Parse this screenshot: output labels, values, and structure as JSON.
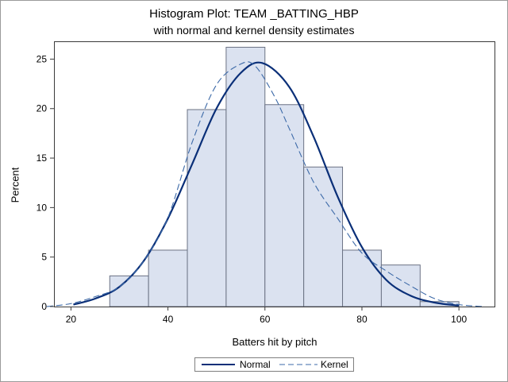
{
  "chart_data": {
    "type": "histogram",
    "title": "Histogram Plot: TEAM _BATTING_HBP",
    "subtitle": "with normal and kernel density estimates",
    "xlabel": "Batters hit by pitch",
    "ylabel": "Percent",
    "xlim": [
      16.5,
      107.5
    ],
    "ylim": [
      0,
      26.8
    ],
    "xticks": [
      20,
      40,
      60,
      80,
      100
    ],
    "yticks": [
      0,
      5,
      10,
      15,
      20,
      25
    ],
    "grid": false,
    "legend_position": "bottom-center",
    "bins": [
      {
        "start": 28,
        "end": 36,
        "value": 3.1
      },
      {
        "start": 36,
        "end": 44,
        "value": 5.7
      },
      {
        "start": 44,
        "end": 52,
        "value": 19.9
      },
      {
        "start": 52,
        "end": 60,
        "value": 26.2
      },
      {
        "start": 60,
        "end": 68,
        "value": 20.4
      },
      {
        "start": 68,
        "end": 76,
        "value": 14.1
      },
      {
        "start": 76,
        "end": 84,
        "value": 5.7
      },
      {
        "start": 84,
        "end": 92,
        "value": 4.2
      },
      {
        "start": 92,
        "end": 100,
        "value": 0.5
      }
    ],
    "series": [
      {
        "name": "Normal",
        "style": "solid",
        "color": "#0a2f78",
        "x": [
          20.5,
          25,
          30,
          35,
          40,
          45,
          50,
          55,
          59.5,
          65,
          70,
          75,
          80,
          85,
          90,
          95,
          100
        ],
        "y": [
          0.2,
          0.8,
          2.0,
          4.6,
          8.9,
          14.4,
          20.0,
          23.6,
          24.6,
          22.2,
          17.2,
          11.1,
          6.0,
          2.7,
          1.1,
          0.4,
          0.1
        ]
      },
      {
        "name": "Kernel",
        "style": "dashed",
        "color": "#3d6aa8",
        "x": [
          15,
          20,
          25,
          30,
          35,
          40,
          45,
          50,
          55,
          58,
          62,
          65,
          70,
          75,
          80,
          85,
          90,
          95,
          100,
          105
        ],
        "y": [
          0.0,
          0.3,
          1.0,
          2.0,
          4.6,
          9.0,
          16.6,
          22.4,
          24.5,
          24.3,
          21.2,
          18.0,
          12.6,
          8.9,
          5.4,
          3.6,
          2.1,
          0.8,
          0.2,
          0.0
        ]
      }
    ],
    "colors": {
      "bar_fill": "#dbe2f0",
      "bar_stroke": "#6b7284",
      "normal": "#0a2f78",
      "kernel": "#3d6aa8"
    }
  }
}
